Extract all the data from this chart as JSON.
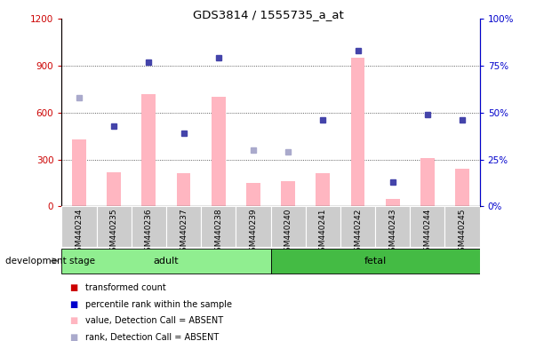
{
  "title": "GDS3814 / 1555735_a_at",
  "samples": [
    "GSM440234",
    "GSM440235",
    "GSM440236",
    "GSM440237",
    "GSM440238",
    "GSM440239",
    "GSM440240",
    "GSM440241",
    "GSM440242",
    "GSM440243",
    "GSM440244",
    "GSM440245"
  ],
  "bar_values": [
    430,
    220,
    720,
    210,
    700,
    150,
    160,
    210,
    950,
    50,
    310,
    240
  ],
  "rank_values": [
    58,
    43,
    77,
    39,
    79,
    30,
    29,
    46,
    83,
    13,
    49,
    46
  ],
  "rank_is_absent": [
    true,
    false,
    false,
    false,
    false,
    true,
    true,
    false,
    false,
    false,
    false,
    false
  ],
  "ylim_left": [
    0,
    1200
  ],
  "ylim_right": [
    0,
    100
  ],
  "yticks_left": [
    0,
    300,
    600,
    900,
    1200
  ],
  "ytick_labels_left": [
    "0",
    "300",
    "600",
    "900",
    "1200"
  ],
  "yticks_right": [
    0,
    25,
    50,
    75,
    100
  ],
  "ytick_labels_right": [
    "0%",
    "25%",
    "50%",
    "75%",
    "100%"
  ],
  "grid_values": [
    300,
    600,
    900
  ],
  "groups": [
    {
      "label": "adult",
      "start": 0,
      "end": 5,
      "color": "#90ee90"
    },
    {
      "label": "fetal",
      "start": 6,
      "end": 11,
      "color": "#44bb44"
    }
  ],
  "bar_color": "#ffb6c1",
  "dot_color_present": "#4444aa",
  "dot_color_absent": "#aaaacc",
  "legend_items": [
    {
      "label": "transformed count",
      "color": "#cc0000"
    },
    {
      "label": "percentile rank within the sample",
      "color": "#0000cc"
    },
    {
      "label": "value, Detection Call = ABSENT",
      "color": "#ffb6c1"
    },
    {
      "label": "rank, Detection Call = ABSENT",
      "color": "#aaaacc"
    }
  ],
  "tick_color_left": "#cc0000",
  "tick_color_right": "#0000cc",
  "bg_color": "#ffffff",
  "development_stage_label": "development stage"
}
